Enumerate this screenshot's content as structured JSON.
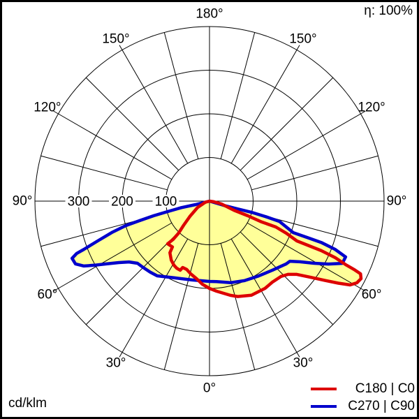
{
  "figure": {
    "efficiency_label": "η: 100%",
    "unit_label": "cd/klm",
    "background_color": "#ffffff",
    "frame_color": "#000000"
  },
  "legend": {
    "items": [
      {
        "label": "C180 | C0",
        "color": "#dd0000"
      },
      {
        "label": "C270 | C90",
        "color": "#0000cc"
      }
    ]
  },
  "chart_data": {
    "type": "line",
    "subtype": "polar-luminous-intensity",
    "angle_convention": "gamma in degrees from nadir: 0 = bottom, 180 = top; negative = left half (C180/C270), positive = right half (C0/C90)",
    "radial_axis": {
      "unit": "cd/klm",
      "ticks": [
        100,
        200,
        300
      ],
      "tick_labels": [
        "100",
        "200",
        "300"
      ],
      "max": 400
    },
    "grid": {
      "circle_values": [
        100,
        200,
        300,
        400
      ],
      "spoke_step_deg": 15,
      "color": "#000000"
    },
    "angle_labels": [
      {
        "gamma": 180,
        "text": "180°"
      },
      {
        "gamma": -150,
        "text": "150°"
      },
      {
        "gamma": 150,
        "text": "150°"
      },
      {
        "gamma": -120,
        "text": "120°"
      },
      {
        "gamma": 120,
        "text": "120°"
      },
      {
        "gamma": -90,
        "text": "90°"
      },
      {
        "gamma": 90,
        "text": "90°"
      },
      {
        "gamma": -60,
        "text": "60°"
      },
      {
        "gamma": 60,
        "text": "60°"
      },
      {
        "gamma": -30,
        "text": "30°"
      },
      {
        "gamma": 30,
        "text": "30°"
      },
      {
        "gamma": 0,
        "text": "0°"
      }
    ],
    "fill_color": "#ffff99",
    "series": [
      {
        "name": "C180 | C0",
        "color": "#dd0000",
        "points": [
          [
            -88,
            0
          ],
          [
            -75,
            10
          ],
          [
            -62,
            31
          ],
          [
            -52,
            57
          ],
          [
            -47,
            81
          ],
          [
            -44,
            102
          ],
          [
            -43.5,
            121
          ],
          [
            -44.5,
            137
          ],
          [
            -39,
            135
          ],
          [
            -37.5,
            149
          ],
          [
            -33,
            161
          ],
          [
            -29,
            168
          ],
          [
            -26,
            171
          ],
          [
            -23,
            172
          ],
          [
            -22,
            164
          ],
          [
            -18.5,
            165
          ],
          [
            -14.5,
            172
          ],
          [
            -9.5,
            180
          ],
          [
            -5,
            191
          ],
          [
            0,
            200
          ],
          [
            4.5,
            207
          ],
          [
            12.5,
            221
          ],
          [
            16.5,
            228
          ],
          [
            24,
            236
          ],
          [
            32.5,
            237
          ],
          [
            38,
            235
          ],
          [
            43.5,
            238
          ],
          [
            47,
            246
          ],
          [
            50,
            261
          ],
          [
            53,
            290
          ],
          [
            55.5,
            321
          ],
          [
            57.5,
            350
          ],
          [
            59.2,
            375
          ],
          [
            61,
            386
          ],
          [
            62.9,
            390
          ],
          [
            64.3,
            384
          ],
          [
            64.7,
            366
          ],
          [
            65,
            344
          ],
          [
            65.8,
            316
          ],
          [
            66.1,
            280
          ],
          [
            65.8,
            246
          ],
          [
            65.5,
            220
          ],
          [
            67.3,
            191
          ],
          [
            68.7,
            163
          ],
          [
            68.2,
            129
          ],
          [
            69.1,
            94
          ],
          [
            69.6,
            60
          ],
          [
            76.8,
            28
          ],
          [
            82,
            10
          ],
          [
            88,
            0
          ]
        ]
      },
      {
        "name": "C270 | C90",
        "color": "#0000cc",
        "points": [
          [
            -85,
            0
          ],
          [
            -76,
            33
          ],
          [
            -77,
            66
          ],
          [
            -76,
            99
          ],
          [
            -75.3,
            132
          ],
          [
            -74.4,
            166
          ],
          [
            -73.7,
            200
          ],
          [
            -72.2,
            235
          ],
          [
            -70.4,
            272
          ],
          [
            -69,
            308
          ],
          [
            -68.5,
            327
          ],
          [
            -67.4,
            341
          ],
          [
            -64.9,
            339
          ],
          [
            -62.7,
            324
          ],
          [
            -60.9,
            302
          ],
          [
            -59,
            280
          ],
          [
            -55.9,
            251
          ],
          [
            -52.9,
            231
          ],
          [
            -49.2,
            218
          ],
          [
            -45,
            215
          ],
          [
            -39.8,
            212
          ],
          [
            -35,
            209
          ],
          [
            -24.4,
            193
          ],
          [
            -12.5,
            185
          ],
          [
            0,
            184
          ],
          [
            5,
            185
          ],
          [
            14.4,
            193
          ],
          [
            23.7,
            199
          ],
          [
            33.2,
            205
          ],
          [
            42.3,
            214
          ],
          [
            50.7,
            227
          ],
          [
            53.2,
            230
          ],
          [
            56.2,
            250
          ],
          [
            59.3,
            279
          ],
          [
            62.1,
            308
          ],
          [
            64.9,
            336
          ],
          [
            67.7,
            337
          ],
          [
            69,
            308
          ],
          [
            69.7,
            273
          ],
          [
            69.6,
            239
          ],
          [
            69.4,
            205
          ],
          [
            73.8,
            167
          ],
          [
            74.6,
            133
          ],
          [
            75.1,
            99
          ],
          [
            74.6,
            66
          ],
          [
            73.3,
            33
          ],
          [
            85,
            0
          ]
        ]
      }
    ]
  }
}
